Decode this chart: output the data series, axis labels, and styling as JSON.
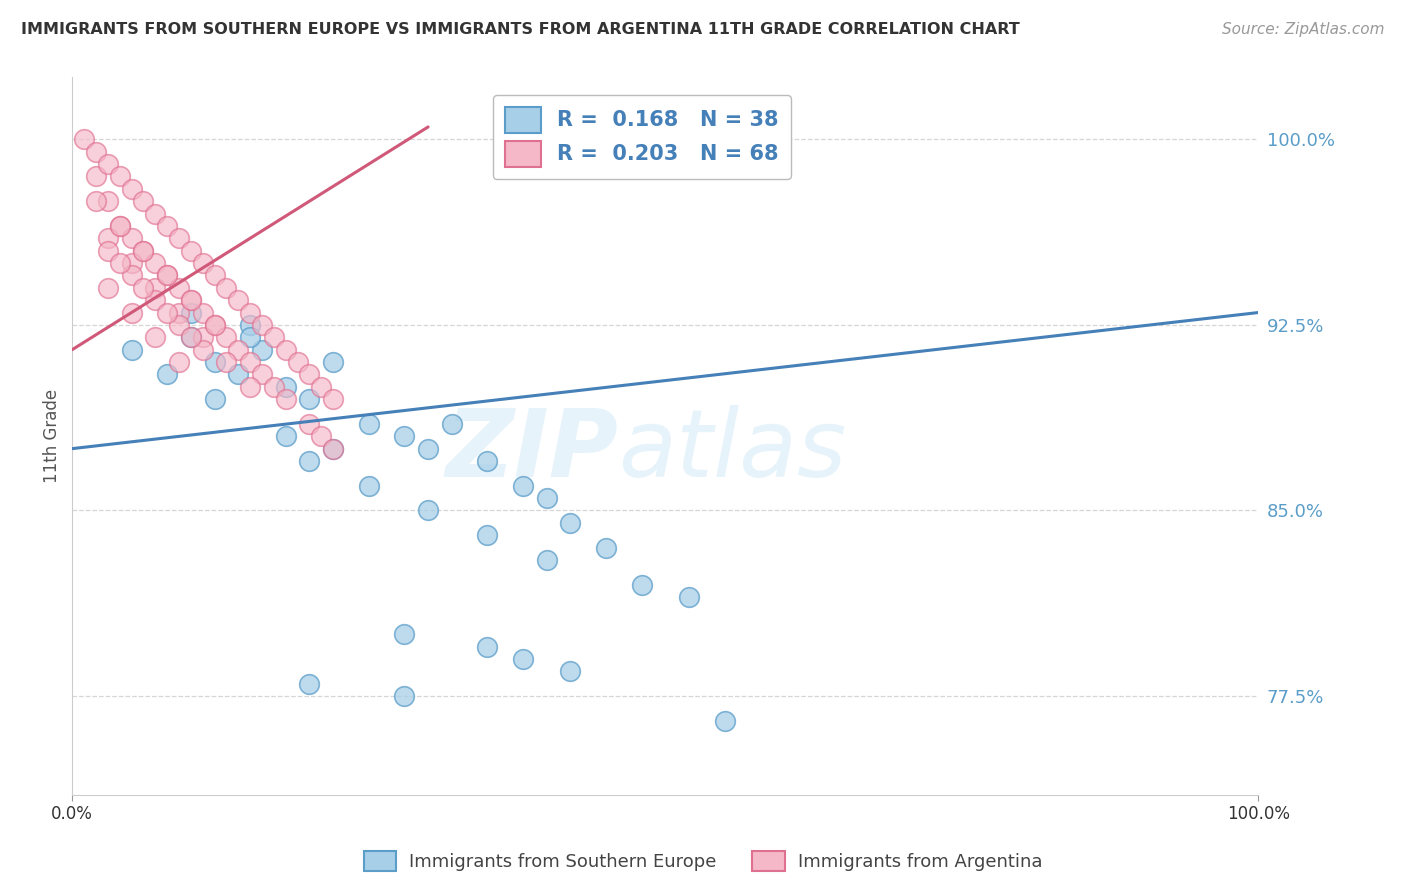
{
  "title": "IMMIGRANTS FROM SOUTHERN EUROPE VS IMMIGRANTS FROM ARGENTINA 11TH GRADE CORRELATION CHART",
  "source": "Source: ZipAtlas.com",
  "ylabel": "11th Grade",
  "xlim": [
    0,
    100
  ],
  "ylim": [
    73.5,
    102.5
  ],
  "yticks": [
    77.5,
    85.0,
    92.5,
    100.0
  ],
  "ytick_labels": [
    "77.5%",
    "85.0%",
    "92.5%",
    "100.0%"
  ],
  "xtick_labels": [
    "0.0%",
    "100.0%"
  ],
  "legend_R1": "R =  0.168",
  "legend_N1": "N = 38",
  "legend_R2": "R =  0.203",
  "legend_N2": "N = 68",
  "blue_color": "#a8cfe8",
  "pink_color": "#f4b8c8",
  "blue_edge_color": "#5b9dc9",
  "pink_edge_color": "#e07090",
  "blue_line_color": "#4580b8",
  "pink_line_color": "#d05878",
  "watermark_zip": "ZIP",
  "watermark_atlas": "atlas",
  "blue_line_x0": 0,
  "blue_line_y0": 87.5,
  "blue_line_x1": 100,
  "blue_line_y1": 93.0,
  "pink_line_x0": 0,
  "pink_line_y0": 91.5,
  "pink_line_x1": 30,
  "pink_line_y1": 100.5,
  "blue_x": [
    5,
    8,
    10,
    12,
    14,
    15,
    16,
    18,
    20,
    22,
    25,
    28,
    30,
    32,
    35,
    38,
    40,
    42,
    45,
    48,
    52,
    55,
    10,
    15,
    20,
    25,
    30,
    35,
    40,
    12,
    18,
    22,
    28,
    35,
    38,
    42,
    20,
    28
  ],
  "blue_y": [
    91.5,
    90.5,
    92.0,
    91.0,
    90.5,
    92.5,
    91.5,
    90.0,
    89.5,
    91.0,
    88.5,
    88.0,
    87.5,
    88.5,
    87.0,
    86.0,
    85.5,
    84.5,
    83.5,
    82.0,
    81.5,
    76.5,
    93.0,
    92.0,
    87.0,
    86.0,
    85.0,
    84.0,
    83.0,
    89.5,
    88.0,
    87.5,
    80.0,
    79.5,
    79.0,
    78.5,
    78.0,
    77.5
  ],
  "pink_x": [
    1,
    2,
    2,
    3,
    3,
    4,
    4,
    5,
    5,
    6,
    6,
    7,
    7,
    8,
    8,
    9,
    9,
    10,
    10,
    11,
    11,
    12,
    12,
    13,
    13,
    14,
    14,
    15,
    15,
    16,
    16,
    17,
    17,
    18,
    18,
    19,
    20,
    20,
    21,
    21,
    22,
    22,
    3,
    5,
    7,
    9,
    11,
    13,
    15,
    2,
    4,
    6,
    8,
    10,
    12,
    3,
    5,
    7,
    9,
    11,
    3,
    5,
    7,
    9,
    4,
    6,
    8,
    10
  ],
  "pink_y": [
    100.0,
    99.5,
    98.5,
    99.0,
    97.5,
    98.5,
    96.5,
    98.0,
    96.0,
    97.5,
    95.5,
    97.0,
    95.0,
    96.5,
    94.5,
    96.0,
    94.0,
    95.5,
    93.5,
    95.0,
    93.0,
    94.5,
    92.5,
    94.0,
    92.0,
    93.5,
    91.5,
    93.0,
    91.0,
    92.5,
    90.5,
    92.0,
    90.0,
    91.5,
    89.5,
    91.0,
    90.5,
    88.5,
    90.0,
    88.0,
    89.5,
    87.5,
    96.0,
    95.0,
    94.0,
    93.0,
    92.0,
    91.0,
    90.0,
    97.5,
    96.5,
    95.5,
    94.5,
    93.5,
    92.5,
    95.5,
    94.5,
    93.5,
    92.5,
    91.5,
    94.0,
    93.0,
    92.0,
    91.0,
    95.0,
    94.0,
    93.0,
    92.0
  ]
}
